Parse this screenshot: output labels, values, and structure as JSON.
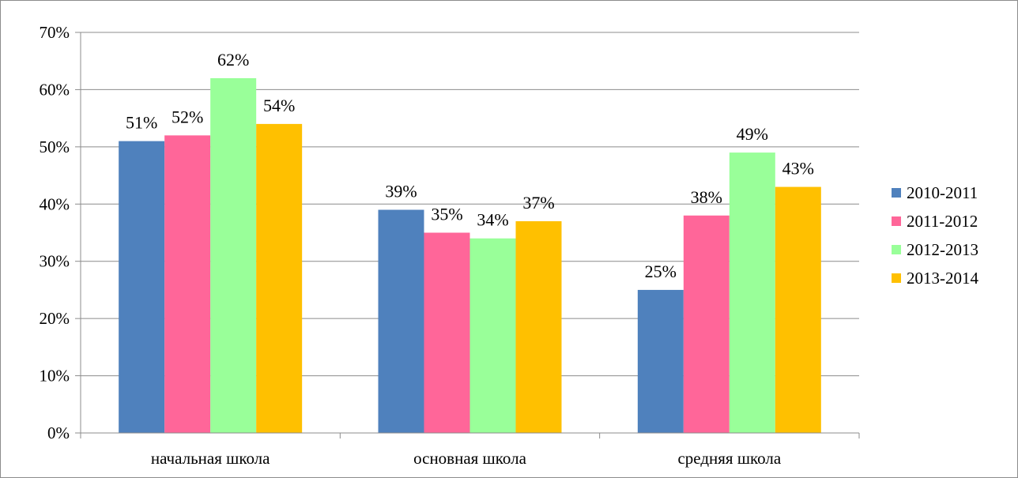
{
  "chart_data": {
    "type": "bar",
    "title": "",
    "xlabel": "",
    "ylabel": "",
    "ylim": [
      0,
      70
    ],
    "y_ticks": [
      0,
      10,
      20,
      30,
      40,
      50,
      60,
      70
    ],
    "y_tick_suffix": "%",
    "grid": true,
    "legend_position": "right",
    "categories": [
      "начальная школа",
      "основная школа",
      "средняя школа"
    ],
    "series": [
      {
        "name": "2010-2011",
        "color": "#4f81bd",
        "values": [
          51,
          39,
          25
        ]
      },
      {
        "name": "2011-2012",
        "color": "#ff6699",
        "values": [
          52,
          35,
          38
        ]
      },
      {
        "name": "2012-2013",
        "color": "#99ff99",
        "values": [
          62,
          34,
          49
        ]
      },
      {
        "name": "2013-2014",
        "color": "#ffc000",
        "values": [
          54,
          37,
          43
        ]
      }
    ]
  }
}
